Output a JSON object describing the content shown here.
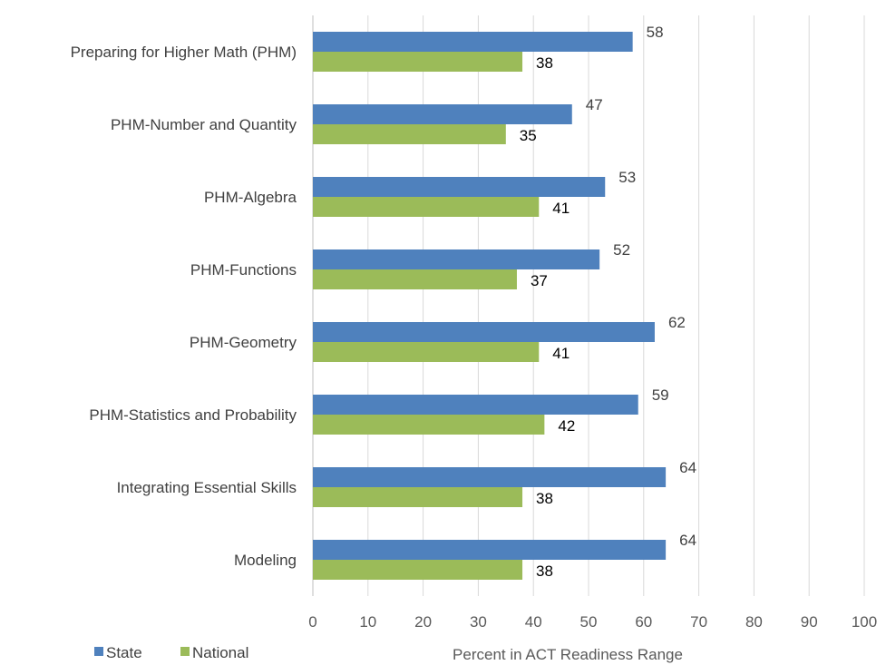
{
  "chart_data": {
    "type": "bar",
    "orientation": "horizontal",
    "categories": [
      "Preparing for Higher Math (PHM)",
      "PHM-Number and Quantity",
      "PHM-Algebra",
      "PHM-Functions",
      "PHM-Geometry",
      "PHM-Statistics and Probability",
      "Integrating Essential Skills",
      "Modeling"
    ],
    "series": [
      {
        "name": "State",
        "color": "#4F81BD",
        "values": [
          58,
          47,
          53,
          52,
          62,
          59,
          64,
          64
        ]
      },
      {
        "name": "National",
        "color": "#9BBB59",
        "values": [
          38,
          35,
          41,
          37,
          41,
          42,
          38,
          38
        ]
      }
    ],
    "xlabel": "Percent in ACT Readiness Range",
    "ylabel": "",
    "xlim": [
      0,
      100
    ],
    "ticks": [
      "0",
      "10",
      "20",
      "30",
      "40",
      "50",
      "60",
      "70",
      "80",
      "90",
      "100"
    ],
    "grid": true,
    "legend_position": "bottom-left"
  }
}
